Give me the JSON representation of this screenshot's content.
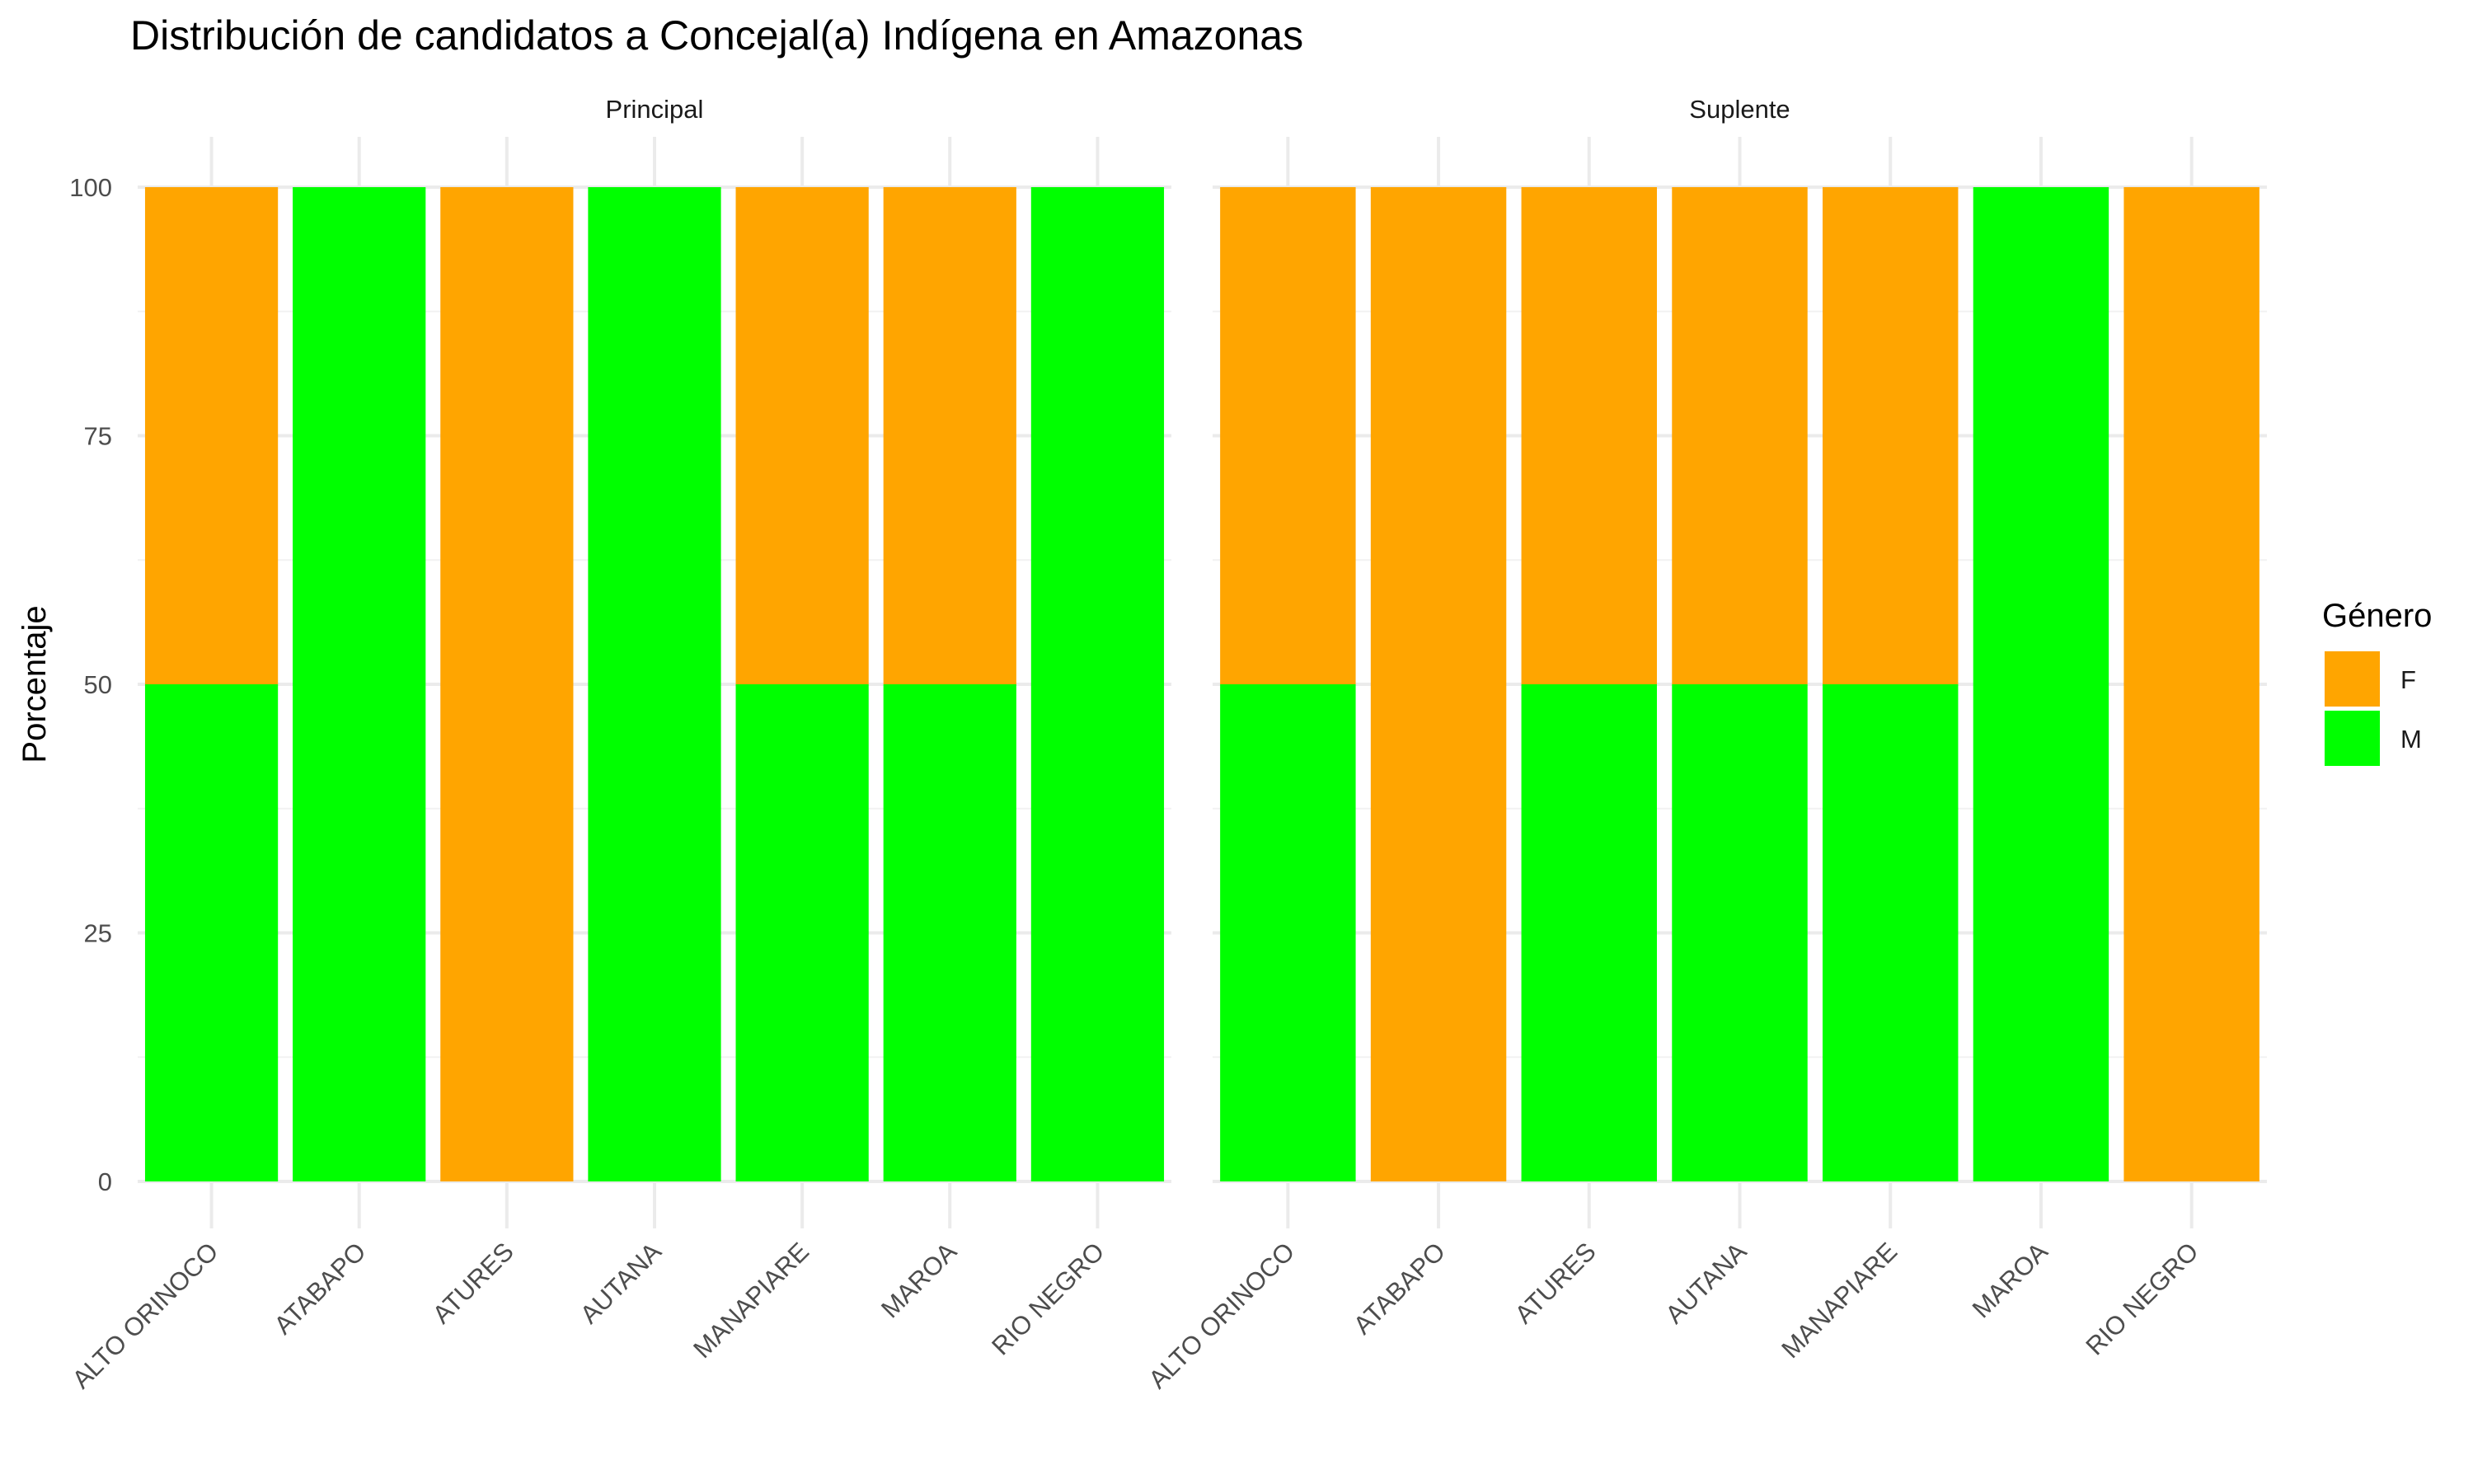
{
  "chart_data": {
    "type": "bar",
    "stacked": true,
    "title": "Distribución de candidatos a Concejal(a) Indígena en Amazonas",
    "xlabel": "",
    "ylabel": "Porcentaje",
    "ylim": [
      0,
      100
    ],
    "yticks": [
      "0",
      "25",
      "50",
      "75",
      "100"
    ],
    "categories": [
      "ALTO ORINOCO",
      "ATABAPO",
      "ATURES",
      "AUTANA",
      "MANAPIARE",
      "MAROA",
      "RIO NEGRO"
    ],
    "legend": {
      "title": "Género",
      "position": "right",
      "entries": [
        {
          "label": "F",
          "color": "#FFA500"
        },
        {
          "label": "M",
          "color": "#00FF00"
        }
      ]
    },
    "grid": true,
    "facets": [
      {
        "name": "Principal",
        "series": [
          {
            "name": "M",
            "color": "#00FF00",
            "values": [
              50,
              100,
              0,
              100,
              50,
              50,
              100
            ]
          },
          {
            "name": "F",
            "color": "#FFA500",
            "values": [
              50,
              0,
              100,
              0,
              50,
              50,
              0
            ]
          }
        ]
      },
      {
        "name": "Suplente",
        "series": [
          {
            "name": "M",
            "color": "#00FF00",
            "values": [
              50,
              0,
              50,
              50,
              50,
              100,
              0
            ]
          },
          {
            "name": "F",
            "color": "#FFA500",
            "values": [
              50,
              100,
              50,
              50,
              50,
              0,
              100
            ]
          }
        ]
      }
    ]
  }
}
